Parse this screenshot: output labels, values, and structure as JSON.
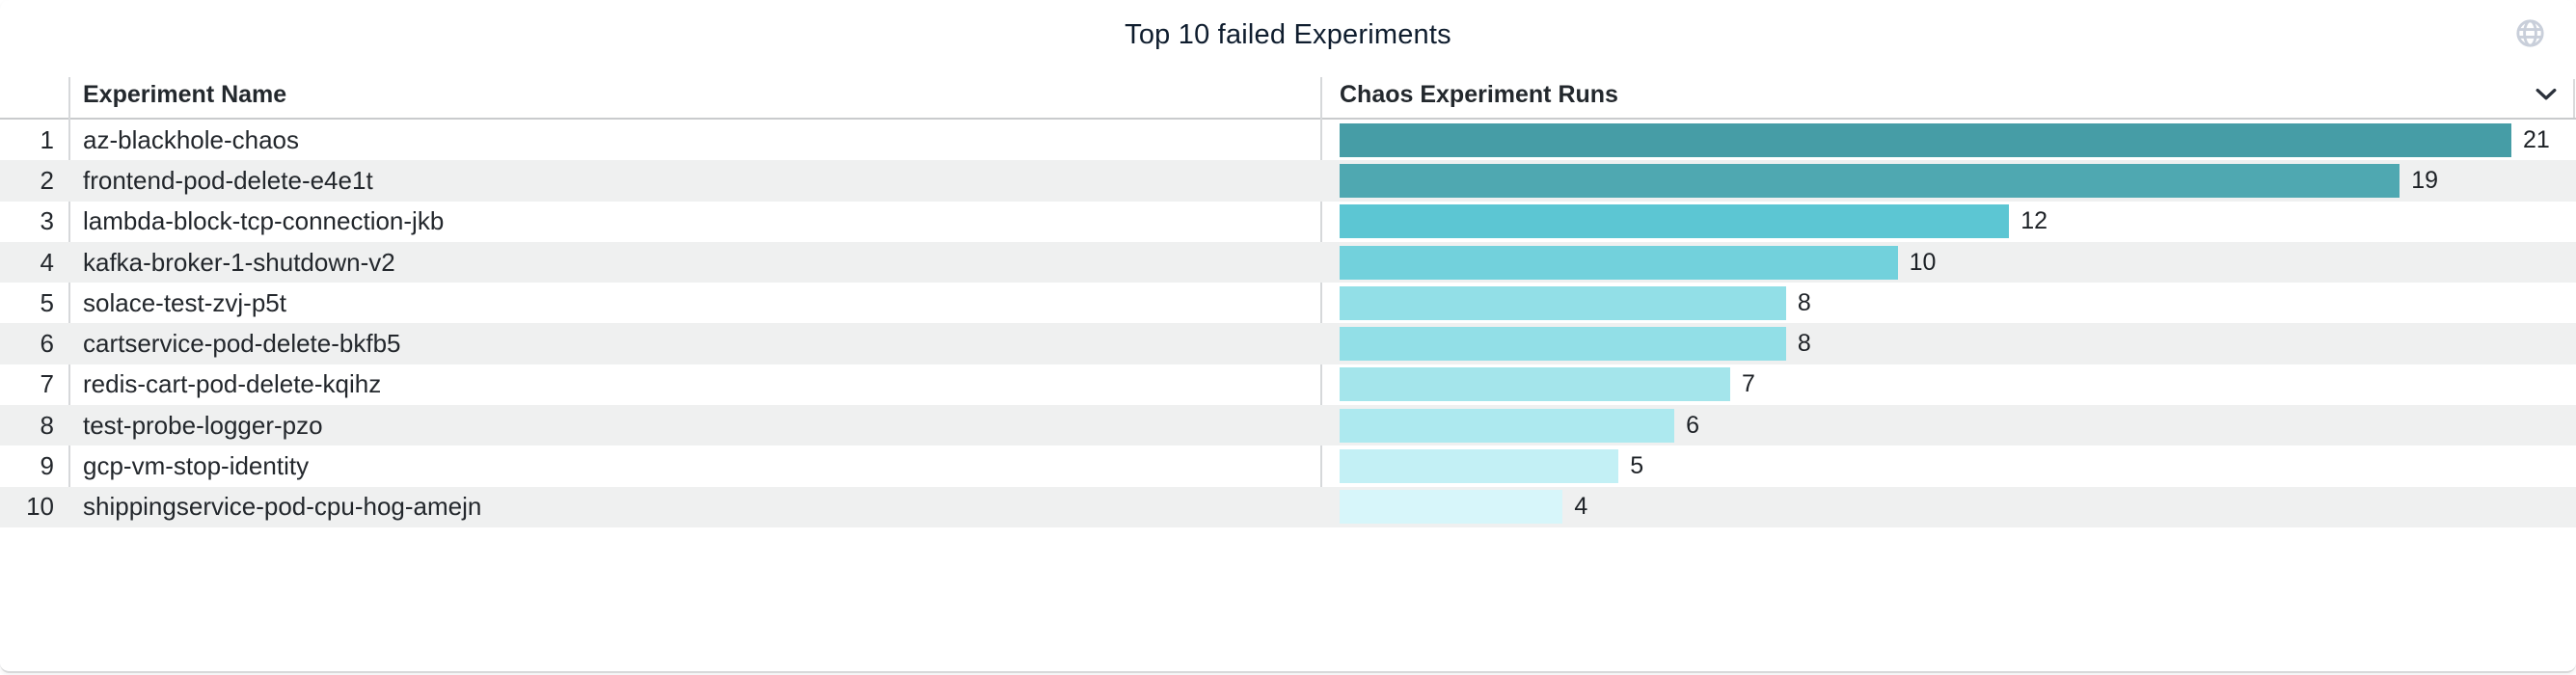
{
  "widget": {
    "title": "Top 10 failed Experiments",
    "header": {
      "experiment_name": "Experiment Name",
      "chaos_experiment_runs": "Chaos Experiment Runs"
    },
    "icons": {
      "top_right": "globe-icon",
      "runs_header": "chevron-down-icon"
    },
    "rows": [
      {
        "rank": "1",
        "name": "az-blackhole-chaos",
        "runs": 21,
        "bar_color": "#469DA6"
      },
      {
        "rank": "2",
        "name": "frontend-pod-delete-e4e1t",
        "runs": 19,
        "bar_color": "#4FA8B1"
      },
      {
        "rank": "3",
        "name": "lambda-block-tcp-connection-jkb",
        "runs": 12,
        "bar_color": "#5CC6D3"
      },
      {
        "rank": "4",
        "name": "kafka-broker-1-shutdown-v2",
        "runs": 10,
        "bar_color": "#72D1DC"
      },
      {
        "rank": "5",
        "name": "solace-test-zvj-p5t",
        "runs": 8,
        "bar_color": "#92DFE7"
      },
      {
        "rank": "6",
        "name": "cartservice-pod-delete-bkfb5",
        "runs": 8,
        "bar_color": "#92DFE7"
      },
      {
        "rank": "7",
        "name": "redis-cart-pod-delete-kqihz",
        "runs": 7,
        "bar_color": "#A4E5EB"
      },
      {
        "rank": "8",
        "name": "test-probe-logger-pzo",
        "runs": 6,
        "bar_color": "#ADE9EF"
      },
      {
        "rank": "9",
        "name": "gcp-vm-stop-identity",
        "runs": 5,
        "bar_color": "#C3F0F5"
      },
      {
        "rank": "10",
        "name": "shippingservice-pod-cpu-hog-amejn",
        "runs": 4,
        "bar_color": "#D7F6FA"
      }
    ],
    "colors": {
      "stripe": "#EFF0F0",
      "header_border": "#C9CBCD",
      "column_divider": "#D6D8DA",
      "title_text": "#0F1D2E",
      "header_text": "#23282D",
      "row_text": "#23272C",
      "globe_icon": "#C9CFDA",
      "chevron_icon": "#2B313B"
    }
  },
  "chart_data": {
    "type": "bar",
    "orientation": "horizontal",
    "title": "Top 10 failed Experiments",
    "series_label": "Chaos Experiment Runs",
    "categories": [
      "az-blackhole-chaos",
      "frontend-pod-delete-e4e1t",
      "lambda-block-tcp-connection-jkb",
      "kafka-broker-1-shutdown-v2",
      "solace-test-zvj-p5t",
      "cartservice-pod-delete-bkfb5",
      "redis-cart-pod-delete-kqihz",
      "test-probe-logger-pzo",
      "gcp-vm-stop-identity",
      "shippingservice-pod-cpu-hog-amejn"
    ],
    "values": [
      21,
      19,
      12,
      10,
      8,
      8,
      7,
      6,
      5,
      4
    ],
    "value_labels": true,
    "xlim": [
      0,
      22
    ],
    "grid": false,
    "legend": false,
    "color_scale": "teal sequential, darker = higher value"
  }
}
